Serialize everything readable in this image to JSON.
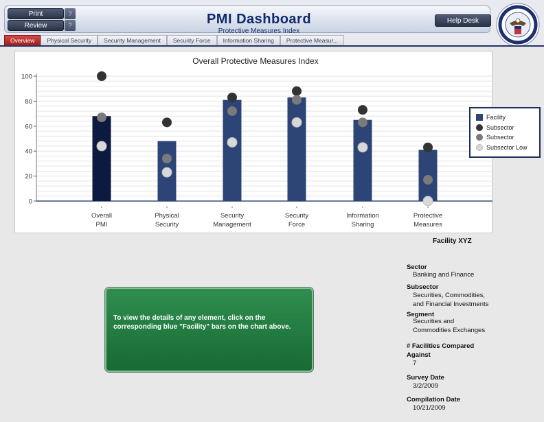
{
  "header": {
    "title": "PMI Dashboard",
    "subtitle": "Protective Measures Index",
    "print_label": "Print",
    "review_label": "Review",
    "help_mark": "?",
    "helpdesk_label": "Help Desk",
    "seal_icon": "dhs-seal-icon"
  },
  "tabs": [
    {
      "label": "Overview",
      "active": true
    },
    {
      "label": "Physical Security",
      "active": false
    },
    {
      "label": "Security Management",
      "active": false
    },
    {
      "label": "Security Force",
      "active": false
    },
    {
      "label": "Information Sharing",
      "active": false
    },
    {
      "label": "Protective Measur...",
      "active": false
    }
  ],
  "colors": {
    "facility_bar": "#2d4477",
    "facility_bar_selected": "#0c1a3f",
    "subsector_high": "#333333",
    "subsector": "#7a7a7a",
    "subsector_low": "#d8d8d8",
    "accent_tab": "#b82a2a",
    "hint_green": "#1f7a3c"
  },
  "chart_data": {
    "type": "bar",
    "title": "Overall Protective Measures Index",
    "categories": [
      [
        "Overall",
        "PMI"
      ],
      [
        "Physical",
        "Security"
      ],
      [
        "Security",
        "Management"
      ],
      [
        "Security",
        "Force"
      ],
      [
        "Information",
        "Sharing"
      ],
      [
        "Protective",
        "Measures"
      ]
    ],
    "ylim": [
      0,
      100
    ],
    "yticks": [
      0,
      20,
      40,
      60,
      80,
      100
    ],
    "series": [
      {
        "name": "Facility",
        "kind": "bar",
        "values": [
          68,
          48,
          81,
          83,
          65,
          41
        ]
      },
      {
        "name": "Subsector",
        "kind": "dot-dark",
        "values": [
          100,
          63,
          83,
          88,
          73,
          43
        ]
      },
      {
        "name": "Subsector",
        "kind": "dot-mid",
        "values": [
          67,
          34,
          72,
          81,
          63,
          17
        ]
      },
      {
        "name": "Subsector Low",
        "kind": "dot-light",
        "values": [
          44,
          23,
          47,
          63,
          43,
          0
        ]
      }
    ],
    "legend_position": "right"
  },
  "facility": {
    "name": "Facility XYZ",
    "sector_label": "Sector",
    "sector_value": "Banking and Finance",
    "subsector_label": "Subsector",
    "subsector_value_1": "Securities, Commodities,",
    "subsector_value_2": "and Financial Investments",
    "segment_label": "Segment",
    "segment_value_1": "Securities and",
    "segment_value_2": "Commodities Exchanges",
    "compared_label_1": "# Facilities Compared",
    "compared_label_2": "Against",
    "compared_value": "7",
    "survey_label": "Survey Date",
    "survey_value": "3/2/2009",
    "compilation_label": "Compilation Date",
    "compilation_value": "10/21/2009"
  },
  "hint": {
    "text": "To view the details of any element, click on the corresponding blue \"Facility\" bars on the chart above."
  }
}
